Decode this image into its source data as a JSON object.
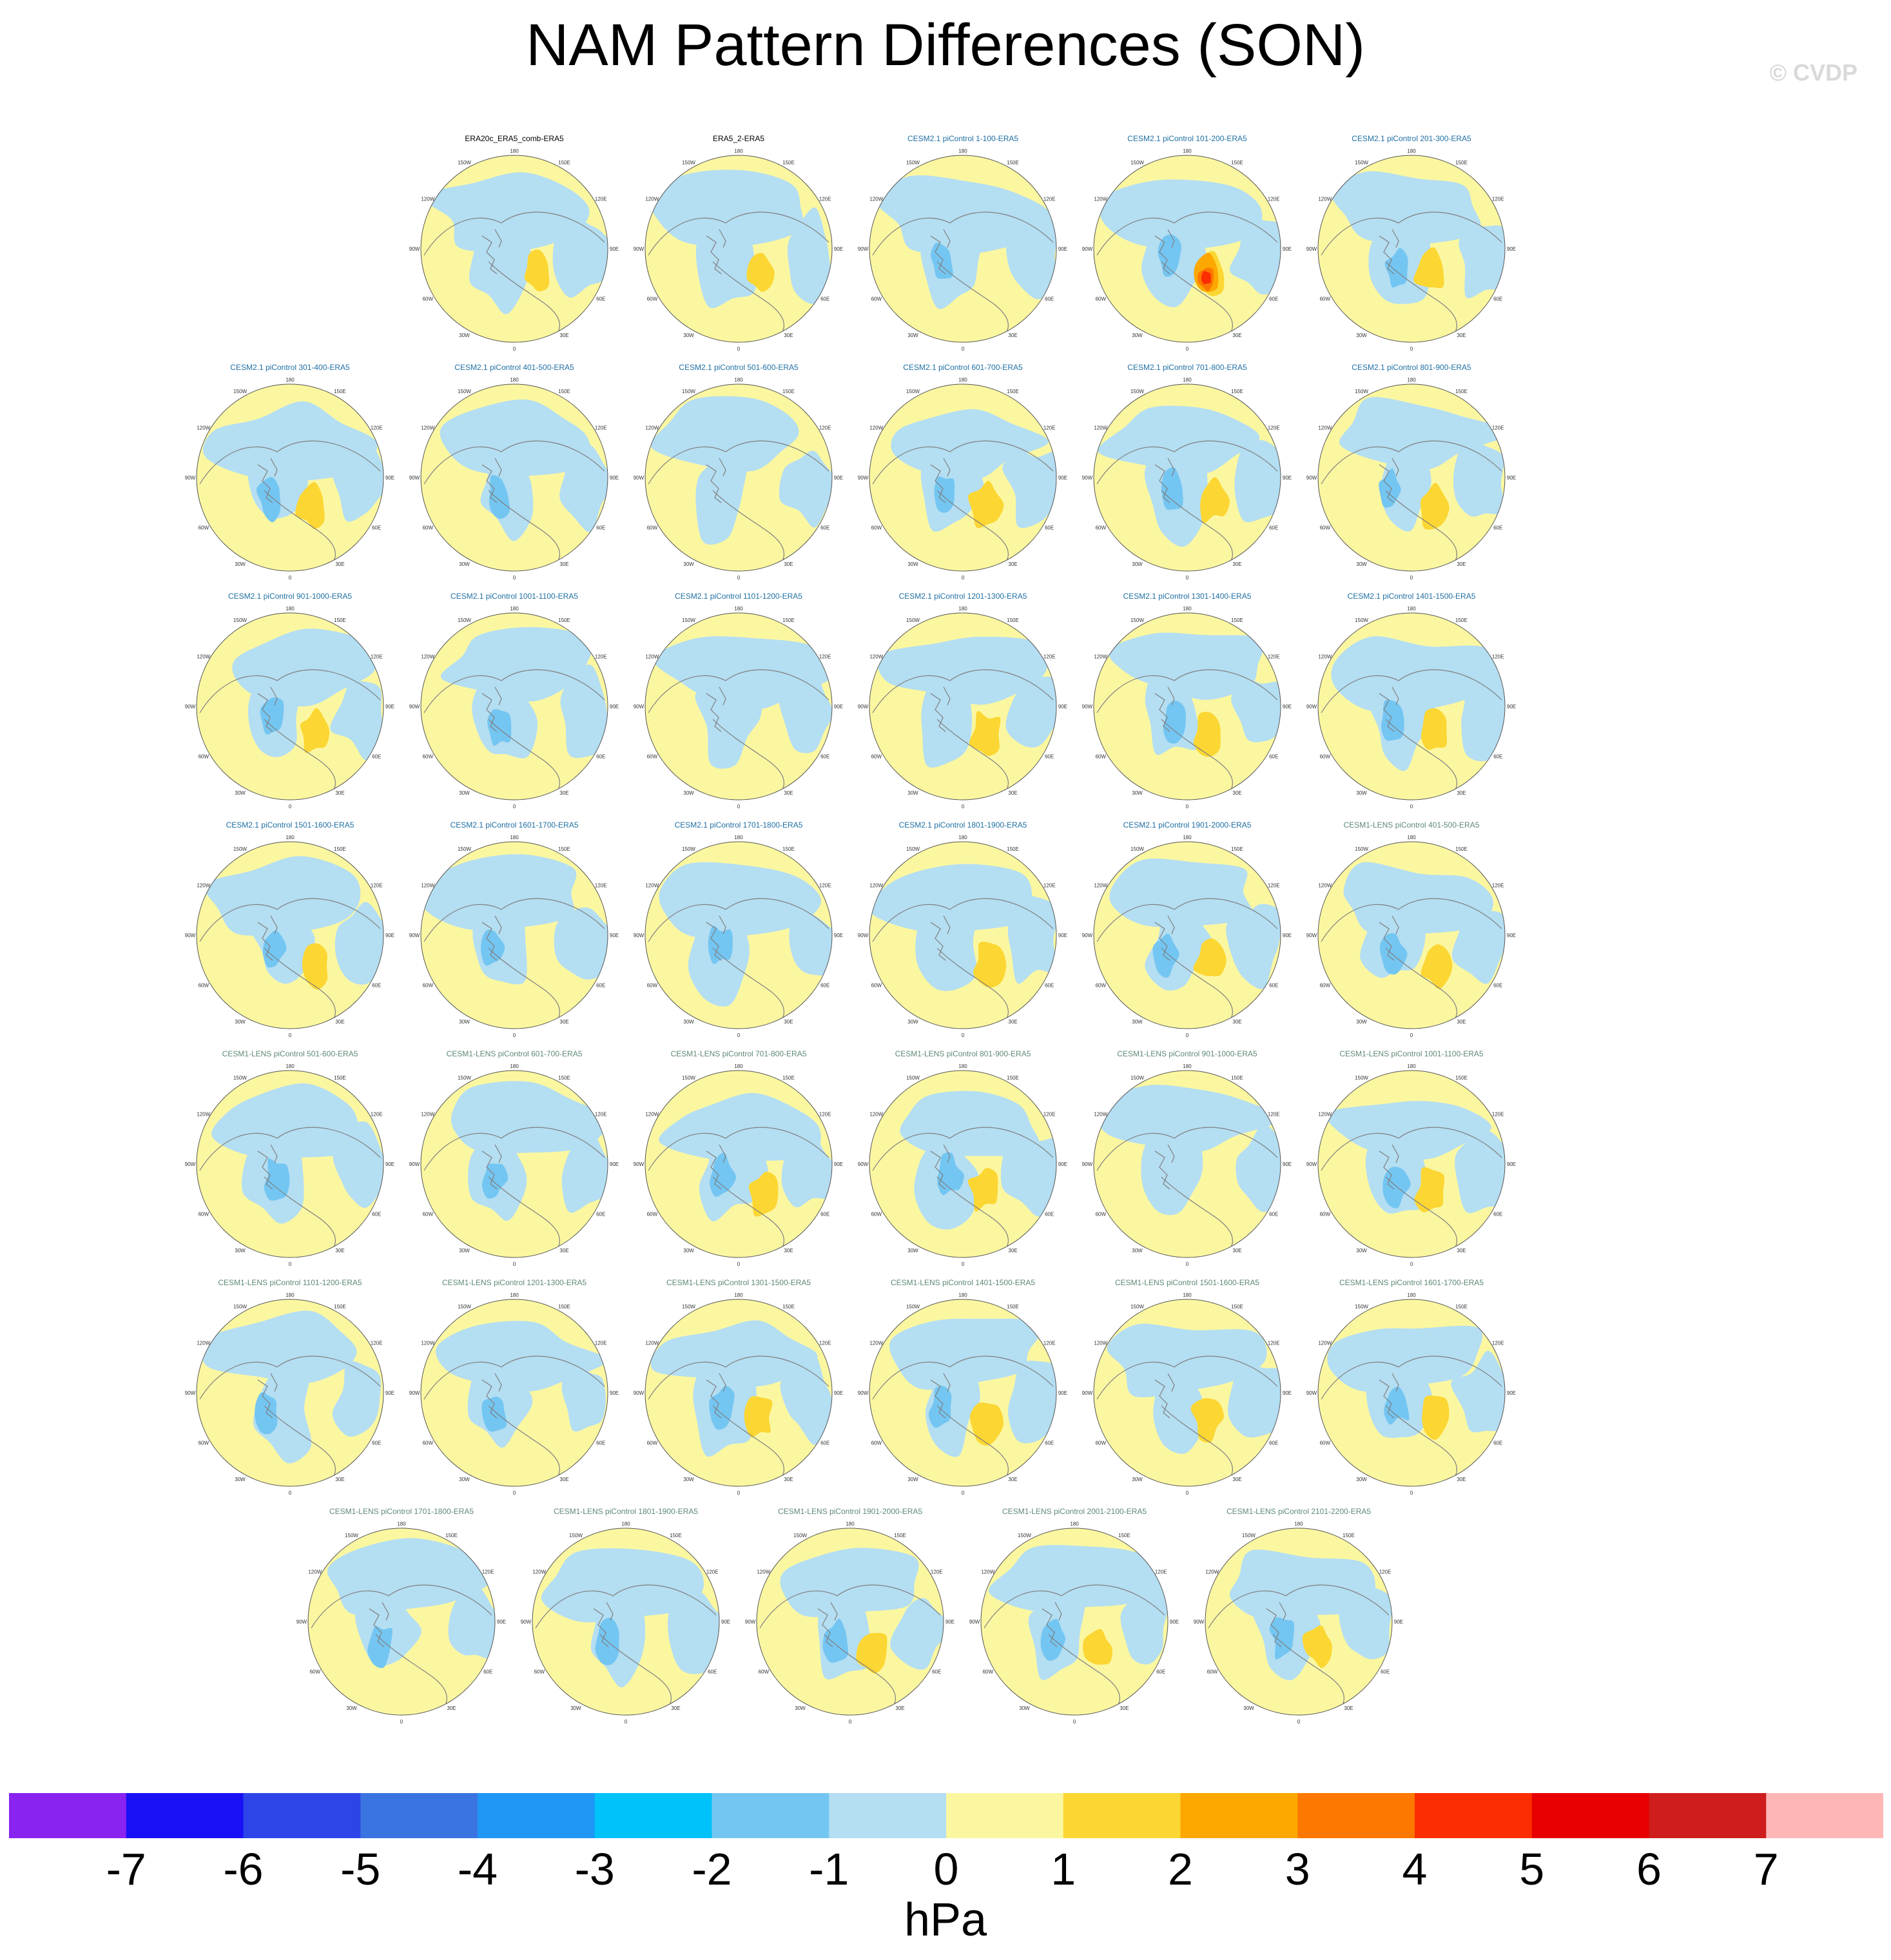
{
  "title": "NAM Pattern Differences (SON)",
  "watermark": "© CVDP",
  "units": "hPa",
  "colors": {
    "title_black": "#000000",
    "title_blue": "#1f6fa3",
    "title_green": "#5e8a74",
    "land": "#7f7f7f"
  },
  "chart_data": {
    "type": "heatmap",
    "projection": "north-polar-stereographic",
    "lon_labels": [
      "180",
      "150E",
      "120E",
      "90E",
      "60E",
      "30E",
      "0",
      "30W",
      "60W",
      "90W",
      "120W",
      "150W"
    ],
    "colorbar": {
      "levels": [
        -7,
        -6,
        -5,
        -4,
        -3,
        -2,
        -1,
        0,
        1,
        2,
        3,
        4,
        5,
        6,
        7
      ],
      "colors": [
        "#8a22f0",
        "#1a10f5",
        "#2d45e8",
        "#3a74e0",
        "#1e96f5",
        "#00c2fa",
        "#74c6f2",
        "#b4def2",
        "#fbf7a1",
        "#fcd632",
        "#fca800",
        "#fc7800",
        "#fc2d00",
        "#e80000",
        "#cf1c1c",
        "#ffb6b6"
      ],
      "label": "hPa"
    },
    "panels": [
      {
        "title": "ERA20c_ERA5_comb-ERA5",
        "row": 0,
        "col": 1,
        "tcolor": "black"
      },
      {
        "title": "ERA5_2-ERA5",
        "row": 0,
        "col": 2,
        "tcolor": "black"
      },
      {
        "title": "CESM2.1 piControl 1-100-ERA5",
        "row": 0,
        "col": 3,
        "tcolor": "blue"
      },
      {
        "title": "CESM2.1 piControl 101-200-ERA5",
        "row": 0,
        "col": 4,
        "tcolor": "blue"
      },
      {
        "title": "CESM2.1 piControl 201-300-ERA5",
        "row": 0,
        "col": 5,
        "tcolor": "blue"
      },
      {
        "title": "CESM2.1 piControl 301-400-ERA5",
        "row": 1,
        "col": 0,
        "tcolor": "blue"
      },
      {
        "title": "CESM2.1 piControl 401-500-ERA5",
        "row": 1,
        "col": 1,
        "tcolor": "blue"
      },
      {
        "title": "CESM2.1 piControl 501-600-ERA5",
        "row": 1,
        "col": 2,
        "tcolor": "blue"
      },
      {
        "title": "CESM2.1 piControl 601-700-ERA5",
        "row": 1,
        "col": 3,
        "tcolor": "blue"
      },
      {
        "title": "CESM2.1 piControl 701-800-ERA5",
        "row": 1,
        "col": 4,
        "tcolor": "blue"
      },
      {
        "title": "CESM2.1 piControl 801-900-ERA5",
        "row": 1,
        "col": 5,
        "tcolor": "blue"
      },
      {
        "title": "CESM2.1 piControl 901-1000-ERA5",
        "row": 2,
        "col": 0,
        "tcolor": "blue"
      },
      {
        "title": "CESM2.1 piControl 1001-1100-ERA5",
        "row": 2,
        "col": 1,
        "tcolor": "blue"
      },
      {
        "title": "CESM2.1 piControl 1101-1200-ERA5",
        "row": 2,
        "col": 2,
        "tcolor": "blue"
      },
      {
        "title": "CESM2.1 piControl 1201-1300-ERA5",
        "row": 2,
        "col": 3,
        "tcolor": "blue"
      },
      {
        "title": "CESM2.1 piControl 1301-1400-ERA5",
        "row": 2,
        "col": 4,
        "tcolor": "blue"
      },
      {
        "title": "CESM2.1 piControl 1401-1500-ERA5",
        "row": 2,
        "col": 5,
        "tcolor": "blue"
      },
      {
        "title": "CESM2.1 piControl 1501-1600-ERA5",
        "row": 3,
        "col": 0,
        "tcolor": "blue"
      },
      {
        "title": "CESM2.1 piControl 1601-1700-ERA5",
        "row": 3,
        "col": 1,
        "tcolor": "blue"
      },
      {
        "title": "CESM2.1 piControl 1701-1800-ERA5",
        "row": 3,
        "col": 2,
        "tcolor": "blue"
      },
      {
        "title": "CESM2.1 piControl 1801-1900-ERA5",
        "row": 3,
        "col": 3,
        "tcolor": "blue"
      },
      {
        "title": "CESM2.1 piControl 1901-2000-ERA5",
        "row": 3,
        "col": 4,
        "tcolor": "blue"
      },
      {
        "title": "CESM1-LENS piControl 401-500-ERA5",
        "row": 3,
        "col": 5,
        "tcolor": "green"
      },
      {
        "title": "CESM1-LENS piControl 501-600-ERA5",
        "row": 4,
        "col": 0,
        "tcolor": "green"
      },
      {
        "title": "CESM1-LENS piControl 601-700-ERA5",
        "row": 4,
        "col": 1,
        "tcolor": "green"
      },
      {
        "title": "CESM1-LENS piControl 701-800-ERA5",
        "row": 4,
        "col": 2,
        "tcolor": "green"
      },
      {
        "title": "CESM1-LENS piControl 801-900-ERA5",
        "row": 4,
        "col": 3,
        "tcolor": "green"
      },
      {
        "title": "CESM1-LENS piControl 901-1000-ERA5",
        "row": 4,
        "col": 4,
        "tcolor": "green"
      },
      {
        "title": "CESM1-LENS piControl 1001-1100-ERA5",
        "row": 4,
        "col": 5,
        "tcolor": "green"
      },
      {
        "title": "CESM1-LENS piControl 1101-1200-ERA5",
        "row": 5,
        "col": 0,
        "tcolor": "green"
      },
      {
        "title": "CESM1-LENS piControl 1201-1300-ERA5",
        "row": 5,
        "col": 1,
        "tcolor": "green"
      },
      {
        "title": "CESM1-LENS piControl 1301-1500-ERA5",
        "row": 5,
        "col": 2,
        "tcolor": "green"
      },
      {
        "title": "CESM1-LENS piControl 1401-1500-ERA5",
        "row": 5,
        "col": 3,
        "tcolor": "green"
      },
      {
        "title": "CESM1-LENS piControl 1501-1600-ERA5",
        "row": 5,
        "col": 4,
        "tcolor": "green"
      },
      {
        "title": "CESM1-LENS piControl 1601-1700-ERA5",
        "row": 5,
        "col": 5,
        "tcolor": "green"
      },
      {
        "title": "CESM1-LENS piControl 1701-1800-ERA5",
        "row": 6,
        "col": 0,
        "tcolor": "green"
      },
      {
        "title": "CESM1-LENS piControl 1801-1900-ERA5",
        "row": 6,
        "col": 1,
        "tcolor": "green"
      },
      {
        "title": "CESM1-LENS piControl 1901-2000-ERA5",
        "row": 6,
        "col": 2,
        "tcolor": "green"
      },
      {
        "title": "CESM1-LENS piControl 2001-2100-ERA5",
        "row": 6,
        "col": 3,
        "tcolor": "green"
      },
      {
        "title": "CESM1-LENS piControl 2101-2200-ERA5",
        "row": 6,
        "col": 4,
        "tcolor": "green"
      }
    ]
  }
}
